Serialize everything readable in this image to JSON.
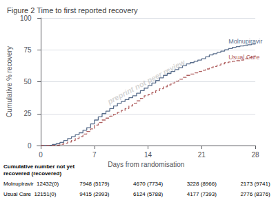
{
  "chart_data": {
    "type": "line",
    "title": "Figure 2 Time to first reported recovery",
    "xlabel": "Days from randomisation",
    "ylabel": "Cumulative % recovery",
    "xlim": [
      -0.5,
      28
    ],
    "ylim": [
      0,
      100
    ],
    "xticks": [
      0,
      7,
      14,
      21,
      28
    ],
    "yticks": [
      0,
      25,
      50,
      75,
      100
    ],
    "grid": true,
    "series": [
      {
        "name": "Molnupiravir",
        "color": "#5a6e8c",
        "line_style": "solid",
        "x": [
          0,
          0.5,
          1,
          1.5,
          2,
          2.5,
          3,
          3.5,
          4,
          4.5,
          5,
          5.5,
          6,
          6.5,
          7,
          7.5,
          8,
          8.5,
          9,
          9.5,
          10,
          10.5,
          11,
          11.5,
          12,
          12.5,
          13,
          13.5,
          14,
          14.5,
          15,
          15.5,
          16,
          16.5,
          17,
          17.5,
          18,
          18.5,
          19,
          19.5,
          20,
          20.5,
          21,
          21.5,
          22,
          22.5,
          23,
          23.5,
          24,
          24.5,
          25,
          25.5,
          26,
          26.5,
          27,
          27.5,
          28
        ],
        "values": [
          0,
          0,
          0.3,
          0.8,
          1.5,
          2.5,
          4,
          5.5,
          7,
          8.5,
          10,
          12,
          14,
          17,
          20,
          22.5,
          25,
          27,
          29,
          31,
          33,
          34.5,
          36,
          37.5,
          39,
          41,
          43,
          45,
          47,
          49,
          51,
          53,
          55,
          56.5,
          58,
          59.5,
          61,
          62.5,
          64,
          65,
          66,
          67,
          68,
          69.5,
          71,
          72,
          73,
          74,
          75,
          76,
          77,
          77.5,
          78,
          78.5,
          79,
          79.5,
          80
        ]
      },
      {
        "name": "Usual Care",
        "color": "#b06060",
        "line_style": "dashed",
        "x": [
          0,
          0.5,
          1,
          1.5,
          2,
          2.5,
          3,
          3.5,
          4,
          4.5,
          5,
          5.5,
          6,
          6.5,
          7,
          7.5,
          8,
          8.5,
          9,
          9.5,
          10,
          10.5,
          11,
          11.5,
          12,
          12.5,
          13,
          13.5,
          14,
          14.5,
          15,
          15.5,
          16,
          16.5,
          17,
          17.5,
          18,
          18.5,
          19,
          19.5,
          20,
          20.5,
          21,
          21.5,
          22,
          22.5,
          23,
          23.5,
          24,
          24.5,
          25,
          25.5,
          26,
          26.5,
          27,
          27.5,
          28
        ],
        "values": [
          0,
          0,
          0,
          0.2,
          0.5,
          1,
          1.8,
          2.8,
          4,
          5.5,
          7,
          9,
          11,
          13,
          16,
          18,
          20,
          21.5,
          23,
          24.5,
          26,
          27.5,
          29,
          31,
          33,
          35,
          37,
          39,
          40,
          41.5,
          43,
          44.5,
          46,
          47.5,
          49,
          50.5,
          52,
          53.5,
          55,
          56,
          57,
          58,
          59,
          60,
          61,
          62,
          63,
          64,
          65,
          65.5,
          66,
          66.5,
          67,
          68,
          69,
          70,
          70.5
        ]
      }
    ],
    "annotations": [
      {
        "text": "Molnupiravir",
        "x": 24.5,
        "y": 79
      },
      {
        "text": "Usual Care",
        "x": 24.5,
        "y": 66.5
      },
      {
        "text": "preprint not peer review"
      }
    ],
    "table": {
      "header": "Cumulative number not yet\nrecovered (recovered)",
      "rows": [
        {
          "label": "Molnupiravir  12432(0)",
          "values": [
            "7948 (5179)",
            "4670 (7734)",
            "3228 (8966)",
            "2173 (9741)"
          ]
        },
        {
          "label": "Usual Care  12151(0)",
          "values": [
            "9415 (2993)",
            "6124 (5788)",
            "4177 (7393)",
            "2776 (8376)"
          ]
        }
      ]
    }
  }
}
